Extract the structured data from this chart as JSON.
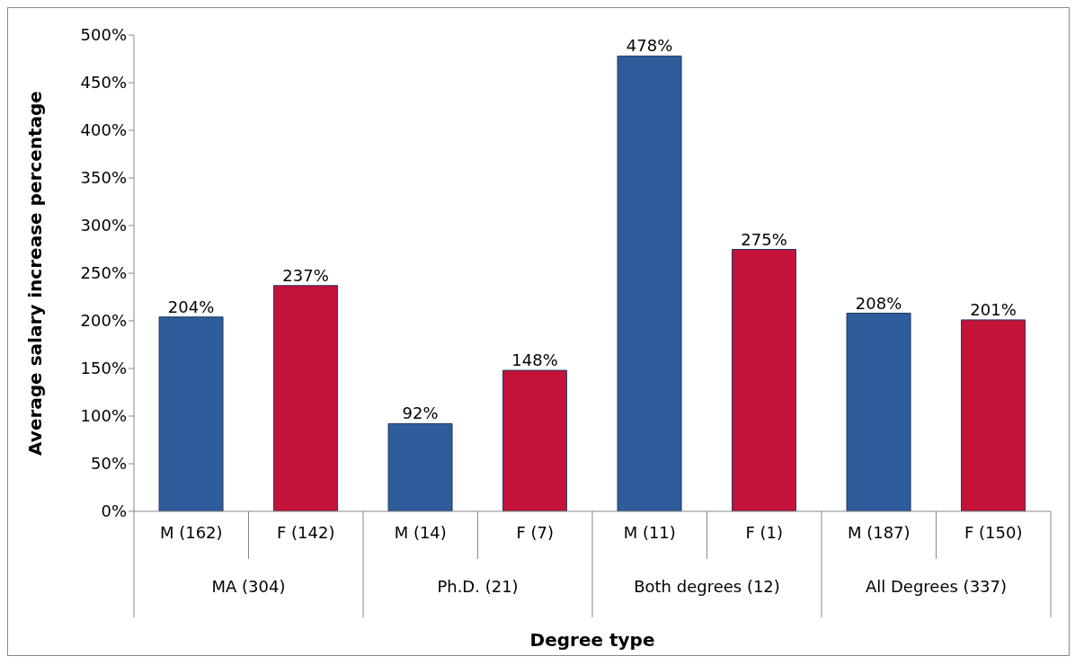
{
  "chart_data": {
    "type": "bar",
    "xlabel": "Degree type",
    "ylabel": "Average salary increase percentage",
    "categories": [
      "M (162)",
      "F (142)",
      "M (14)",
      "F (7)",
      "M (11)",
      "F (1)",
      "M (187)",
      "F (150)"
    ],
    "values": [
      204,
      237,
      92,
      148,
      478,
      275,
      208,
      201
    ],
    "value_labels": [
      "204%",
      "237%",
      "92%",
      "148%",
      "478%",
      "275%",
      "208%",
      "201%"
    ],
    "colors": [
      "#2f5c9a",
      "#c41239",
      "#2f5c9a",
      "#c41239",
      "#2f5c9a",
      "#c41239",
      "#2f5c9a",
      "#c41239"
    ],
    "annotations": [
      "MA (304)",
      "Ph.D. (21)",
      "Both degrees (12)",
      "All Degrees (337)"
    ],
    "ylim": [
      0,
      500
    ],
    "yticks": [
      {
        "value": 0,
        "label": "0%"
      },
      {
        "value": 50,
        "label": "50%"
      },
      {
        "value": 100,
        "label": "100%"
      },
      {
        "value": 150,
        "label": "150%"
      },
      {
        "value": 200,
        "label": "200%"
      },
      {
        "value": 250,
        "label": "250%"
      },
      {
        "value": 300,
        "label": "300%"
      },
      {
        "value": 350,
        "label": "350%"
      },
      {
        "value": 400,
        "label": "400%"
      },
      {
        "value": 450,
        "label": "450%"
      },
      {
        "value": 500,
        "label": "500%"
      }
    ],
    "grid": false,
    "legend": false
  }
}
